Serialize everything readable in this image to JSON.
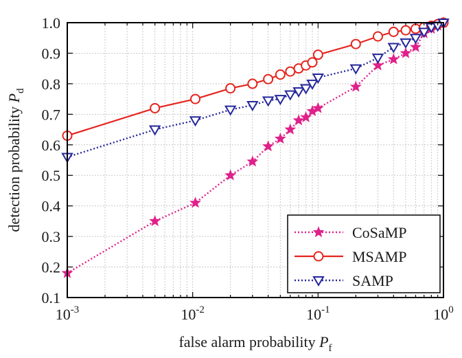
{
  "chart_data": {
    "type": "line",
    "xscale": "log",
    "xlim": [
      0.001,
      1
    ],
    "ylim": [
      0.1,
      1.0
    ],
    "grid": true,
    "legend_position": "bottom-right",
    "xlabel": {
      "main": "false alarm probability ",
      "symbol": "P",
      "sub": "f"
    },
    "ylabel": {
      "main": "detection probability ",
      "symbol": "P",
      "sub": "d"
    },
    "x_ticks": [
      {
        "value": 0.001,
        "base": "10",
        "exp": "-3"
      },
      {
        "value": 0.01,
        "base": "10",
        "exp": "-2"
      },
      {
        "value": 0.1,
        "base": "10",
        "exp": "-1"
      },
      {
        "value": 1,
        "base": "10",
        "exp": "0"
      }
    ],
    "y_ticks": [
      "0.1",
      "0.2",
      "0.3",
      "0.4",
      "0.5",
      "0.6",
      "0.7",
      "0.8",
      "0.9",
      "1.0"
    ],
    "series": [
      {
        "name": "CoSaMP",
        "color": "#e0208a",
        "line_style": "dotted",
        "marker": "star",
        "x": [
          0.001,
          0.005,
          0.0105,
          0.02,
          0.03,
          0.04,
          0.05,
          0.06,
          0.07,
          0.08,
          0.09,
          0.1,
          0.2,
          0.3,
          0.4,
          0.5,
          0.6,
          0.7,
          0.8,
          0.9,
          1.0
        ],
        "y": [
          0.18,
          0.35,
          0.41,
          0.5,
          0.545,
          0.595,
          0.62,
          0.65,
          0.68,
          0.69,
          0.71,
          0.72,
          0.79,
          0.86,
          0.88,
          0.9,
          0.92,
          0.965,
          0.98,
          0.99,
          1.0
        ]
      },
      {
        "name": "MSAMP",
        "color": "#e5241e",
        "line_style": "solid",
        "marker": "circle",
        "x": [
          0.001,
          0.005,
          0.0105,
          0.02,
          0.03,
          0.04,
          0.05,
          0.06,
          0.07,
          0.08,
          0.09,
          0.1,
          0.2,
          0.3,
          0.4,
          0.5,
          0.6,
          0.7,
          0.8,
          0.9,
          1.0
        ],
        "y": [
          0.63,
          0.72,
          0.75,
          0.785,
          0.8,
          0.815,
          0.83,
          0.84,
          0.85,
          0.86,
          0.87,
          0.895,
          0.93,
          0.955,
          0.97,
          0.975,
          0.98,
          0.985,
          0.99,
          0.995,
          1.0
        ]
      },
      {
        "name": "SAMP",
        "color": "#25279a",
        "line_style": "dotted",
        "marker": "triangle-down",
        "x": [
          0.001,
          0.005,
          0.0105,
          0.02,
          0.03,
          0.04,
          0.05,
          0.06,
          0.07,
          0.08,
          0.09,
          0.1,
          0.2,
          0.3,
          0.4,
          0.5,
          0.6,
          0.7,
          0.8,
          0.9,
          1.0
        ],
        "y": [
          0.56,
          0.65,
          0.68,
          0.715,
          0.73,
          0.745,
          0.75,
          0.765,
          0.775,
          0.785,
          0.8,
          0.82,
          0.85,
          0.885,
          0.92,
          0.935,
          0.95,
          0.97,
          0.985,
          0.99,
          1.0
        ]
      }
    ]
  }
}
